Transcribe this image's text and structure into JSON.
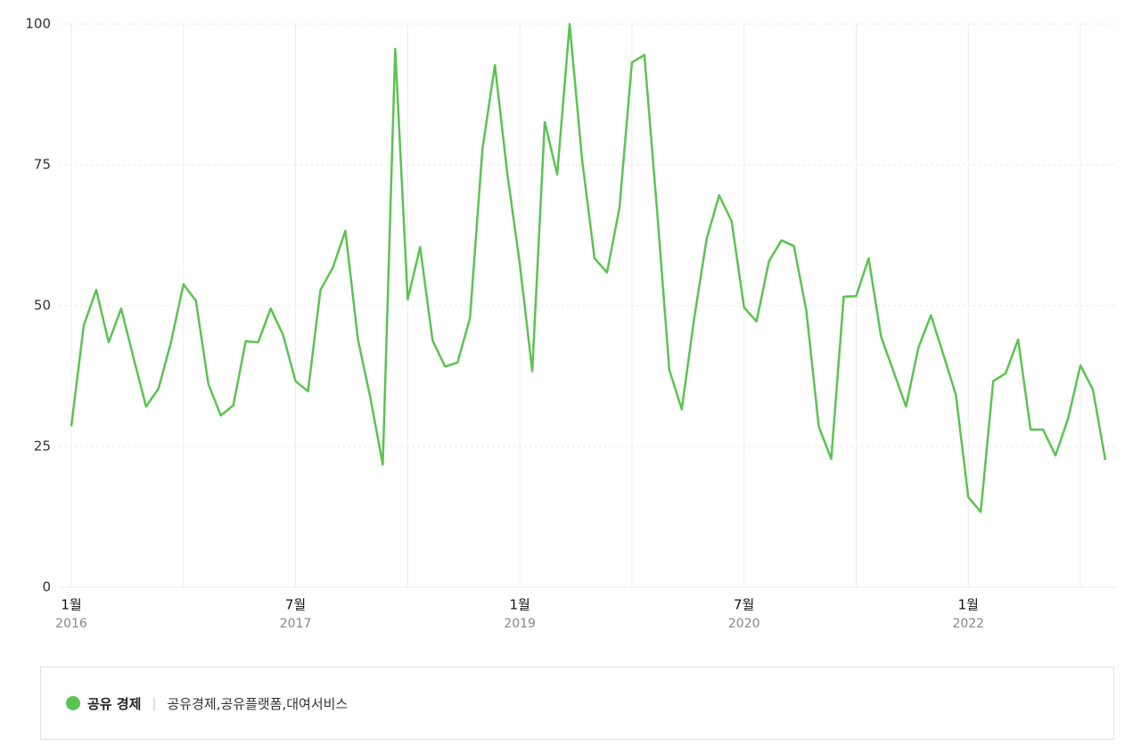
{
  "chart_data": {
    "type": "line",
    "x": [
      "2016-01",
      "2016-02",
      "2016-03",
      "2016-04",
      "2016-05",
      "2016-06",
      "2016-07",
      "2016-08",
      "2016-09",
      "2016-10",
      "2016-11",
      "2016-12",
      "2017-01",
      "2017-02",
      "2017-03",
      "2017-04",
      "2017-05",
      "2017-06",
      "2017-07",
      "2017-08",
      "2017-09",
      "2017-10",
      "2017-11",
      "2017-12",
      "2018-01",
      "2018-02",
      "2018-03",
      "2018-04",
      "2018-05",
      "2018-06",
      "2018-07",
      "2018-08",
      "2018-09",
      "2018-10",
      "2018-11",
      "2018-12",
      "2019-01",
      "2019-02",
      "2019-03",
      "2019-04",
      "2019-05",
      "2019-06",
      "2019-07",
      "2019-08",
      "2019-09",
      "2019-10",
      "2019-11",
      "2019-12",
      "2020-01",
      "2020-02",
      "2020-03",
      "2020-04",
      "2020-05",
      "2020-06",
      "2020-07",
      "2020-08",
      "2020-09",
      "2020-10",
      "2020-11",
      "2020-12",
      "2021-01",
      "2021-02",
      "2021-03",
      "2021-04",
      "2021-05",
      "2021-06",
      "2021-07",
      "2021-08",
      "2021-09",
      "2021-10",
      "2021-11",
      "2021-12",
      "2022-01",
      "2022-02",
      "2022-03",
      "2022-04",
      "2022-05",
      "2022-06",
      "2022-07",
      "2022-08",
      "2022-09",
      "2022-10",
      "2022-11",
      "2022-12"
    ],
    "series": [
      {
        "name": "공유 경제",
        "keywords": "공유경제,공유플랫폼,대여서비스",
        "color": "#5ac451",
        "values": [
          28.6,
          46.5,
          52.8,
          43.5,
          49.5,
          40.7,
          32.1,
          35.3,
          43.5,
          53.8,
          50.9,
          36.1,
          30.5,
          32.3,
          43.7,
          43.5,
          49.5,
          44.8,
          36.6,
          34.8,
          52.8,
          56.8,
          63.3,
          44.1,
          33.7,
          21.8,
          95.6,
          51.1,
          60.4,
          43.8,
          39.2,
          39.9,
          47.8,
          77.8,
          92.7,
          73.4,
          57.4,
          38.4,
          82.6,
          73.3,
          100,
          75.9,
          58.4,
          55.9,
          67.4,
          93.2,
          94.5,
          67.4,
          38.6,
          31.6,
          47.8,
          61.9,
          69.6,
          65.0,
          49.7,
          47.2,
          57.9,
          61.6,
          60.6,
          49.1,
          28.5,
          22.8,
          51.6,
          51.7,
          58.4,
          44.5,
          38.3,
          32.1,
          42.6,
          48.3,
          41.3,
          34.2,
          16.0,
          13.4,
          36.6,
          38.0,
          44.0,
          28.0,
          28.0,
          23.4,
          29.9,
          39.4,
          35.1,
          22.6
        ]
      }
    ],
    "xlim": [
      "2016-01",
      "2022-12"
    ],
    "xticks": [
      {
        "value": "2016-01",
        "label": "1월",
        "year": "2016"
      },
      {
        "value": "2016-10"
      },
      {
        "value": "2017-07",
        "label": "7월",
        "year": "2017"
      },
      {
        "value": "2018-04"
      },
      {
        "value": "2019-01",
        "label": "1월",
        "year": "2019"
      },
      {
        "value": "2019-10"
      },
      {
        "value": "2020-07",
        "label": "7월",
        "year": "2020"
      },
      {
        "value": "2021-04"
      },
      {
        "value": "2022-01",
        "label": "1월",
        "year": "2022"
      },
      {
        "value": "2022-10"
      }
    ],
    "ylim": [
      0,
      100
    ],
    "yticks": [
      0,
      25,
      50,
      75,
      100
    ],
    "grid": true
  }
}
